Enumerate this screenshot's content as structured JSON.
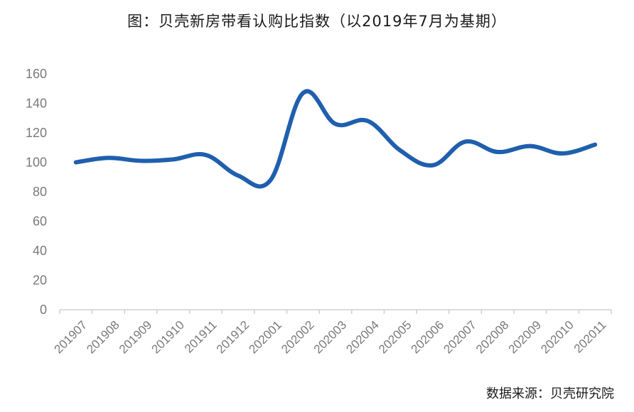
{
  "chart_data": {
    "type": "line",
    "title": "图：贝壳新房带看认购比指数（以2019年7月为基期）",
    "categories": [
      "201907",
      "201908",
      "201909",
      "201910",
      "201911",
      "201912",
      "202001",
      "202002",
      "202003",
      "202004",
      "202005",
      "202006",
      "202007",
      "202008",
      "202009",
      "202010",
      "202011"
    ],
    "series": [
      {
        "values": [
          100,
          103,
          101,
          102,
          105,
          91,
          88,
          147,
          126,
          128,
          108,
          98,
          114,
          107,
          111,
          106,
          112
        ]
      }
    ],
    "yticks": [
      0,
      20,
      40,
      60,
      80,
      100,
      120,
      140,
      160
    ],
    "ylim": [
      0,
      160
    ],
    "grid": false,
    "line_color": "#1f5fad"
  },
  "source": "数据来源：贝壳研究院"
}
